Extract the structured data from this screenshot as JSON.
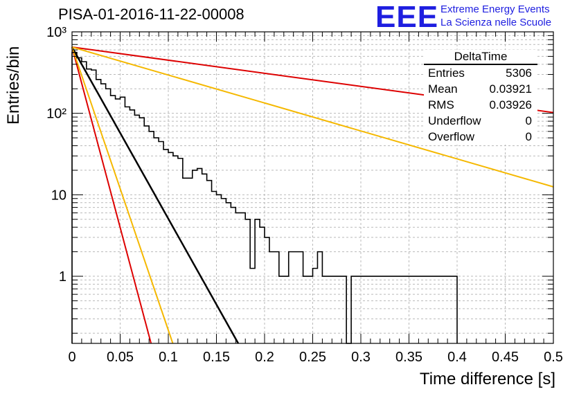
{
  "header": {
    "title": "PISA-01-2016-11-22-00008",
    "logo_text": "EEE",
    "logo_line1": "Extreme Energy Events",
    "logo_line2": "La Scienza nelle Scuole"
  },
  "stats": {
    "name": "DeltaTime",
    "rows": [
      {
        "label": "Entries",
        "value": "5306"
      },
      {
        "label": "Mean",
        "value": "0.03921"
      },
      {
        "label": "RMS",
        "value": "0.03926"
      },
      {
        "label": "Underflow",
        "value": "0"
      },
      {
        "label": "Overflow",
        "value": "0"
      }
    ]
  },
  "chart_data": {
    "type": "histogram",
    "title": "PISA-01-2016-11-22-00008",
    "xlabel": "Time difference [s]",
    "ylabel": "Entries/bin",
    "xlim": [
      0,
      0.5
    ],
    "ylim": [
      0.15,
      1000
    ],
    "yscale": "log",
    "x_ticks": [
      "0",
      "0.05",
      "0.1",
      "0.15",
      "0.2",
      "0.25",
      "0.3",
      "0.35",
      "0.4",
      "0.45",
      "0.5"
    ],
    "y_ticks": [
      {
        "value": 1000,
        "label": "10³"
      },
      {
        "value": 100,
        "label": "10²"
      },
      {
        "value": 10,
        "label": "10"
      },
      {
        "value": 1,
        "label": "1"
      }
    ],
    "grid": true,
    "bin_width": 0.005,
    "counts": [
      560,
      480,
      430,
      350,
      340,
      260,
      230,
      200,
      165,
      150,
      158,
      120,
      110,
      95,
      88,
      70,
      60,
      50,
      45,
      36,
      33,
      30,
      28,
      16,
      16,
      20,
      21,
      18,
      15,
      11,
      10,
      9,
      8,
      7,
      6,
      6,
      5,
      1.25,
      5,
      4,
      3,
      2,
      2,
      1,
      1,
      2,
      2,
      2,
      1,
      1,
      1.25,
      2,
      1,
      1,
      1,
      1,
      1,
      0,
      1,
      1,
      1,
      1,
      1,
      1,
      1,
      1,
      1,
      1,
      1,
      1,
      1,
      1,
      1,
      1,
      1,
      1,
      1,
      1,
      1,
      1
    ],
    "fits": [
      {
        "color": "#000000",
        "y0": 650,
        "slope_per_s": -48.5
      },
      {
        "color": "#dd0000",
        "y0": 650,
        "slope_per_s": -3.7
      },
      {
        "color": "#f5b800",
        "y0": 650,
        "slope_per_s": -7.9
      },
      {
        "color": "#dd0000",
        "y0": 650,
        "slope_per_s": -102
      },
      {
        "color": "#f5b800",
        "y0": 650,
        "slope_per_s": -80
      }
    ]
  }
}
